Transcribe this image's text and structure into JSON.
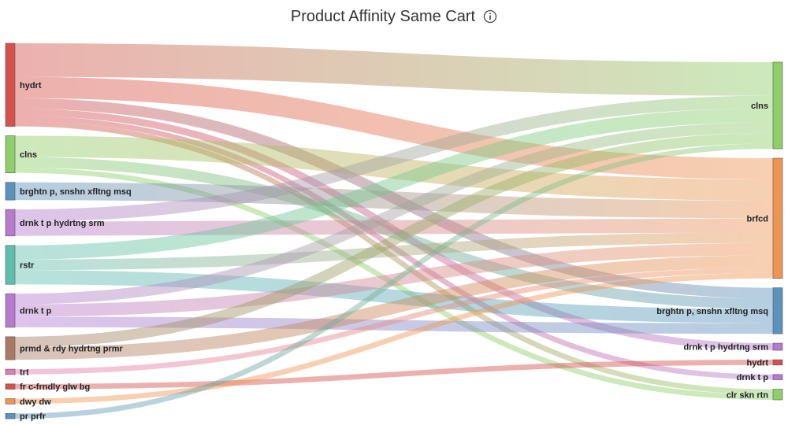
{
  "title": "Product Affinity Same Cart",
  "info_icon": "info-icon",
  "chart_data": {
    "type": "sankey",
    "title": "Product Affinity Same Cart",
    "sources": [
      {
        "id": "s_hydrt",
        "label": "hydrt",
        "color": "#d6504c"
      },
      {
        "id": "s_clns",
        "label": "clns",
        "color": "#8fcf6a"
      },
      {
        "id": "s_brghtn",
        "label": "brghtn p, snshn xfltng msq",
        "color": "#5b93bd"
      },
      {
        "id": "s_drnk_hydrtng",
        "label": "drnk t p hydrtng srm",
        "color": "#b67ad1"
      },
      {
        "id": "s_rstr",
        "label": "rstr",
        "color": "#5fbfae"
      },
      {
        "id": "s_drnk",
        "label": "drnk t p",
        "color": "#b67ad1"
      },
      {
        "id": "s_prmd",
        "label": "prmd & rdy hydrtng prmr",
        "color": "#a87a64"
      },
      {
        "id": "s_trt",
        "label": "trt",
        "color": "#e07bb3"
      },
      {
        "id": "s_fr",
        "label": "fr c-frndly glw bg",
        "color": "#d6504c"
      },
      {
        "id": "s_dwy",
        "label": "dwy dw",
        "color": "#ee9553"
      },
      {
        "id": "s_pr",
        "label": "pr prfr",
        "color": "#5b93bd"
      }
    ],
    "targets": [
      {
        "id": "t_clns",
        "label": "clns",
        "color": "#8fcf6a"
      },
      {
        "id": "t_brfcd",
        "label": "brfcd",
        "color": "#ee9553"
      },
      {
        "id": "t_brghtn",
        "label": "brghtn p, snshn xfltng msq",
        "color": "#5b93bd"
      },
      {
        "id": "t_drnk_hydrtng",
        "label": "drnk t p hydrtng srm",
        "color": "#b67ad1"
      },
      {
        "id": "t_hydrt",
        "label": "hydrt",
        "color": "#d6504c"
      },
      {
        "id": "t_drnk",
        "label": "drnk t p",
        "color": "#b67ad1"
      },
      {
        "id": "t_clr",
        "label": "clr skn rtn",
        "color": "#8fcf6a"
      }
    ],
    "links": [
      {
        "source": "s_hydrt",
        "target": "t_clns",
        "value": 19
      },
      {
        "source": "s_hydrt",
        "target": "t_brfcd",
        "value": 12
      },
      {
        "source": "s_hydrt",
        "target": "t_brghtn",
        "value": 6
      },
      {
        "source": "s_hydrt",
        "target": "t_drnk_hydrtng",
        "value": 4
      },
      {
        "source": "s_hydrt",
        "target": "t_drnk",
        "value": 3
      },
      {
        "source": "s_hydrt",
        "target": "t_clr",
        "value": 3
      },
      {
        "source": "s_clns",
        "target": "t_brfcd",
        "value": 12
      },
      {
        "source": "s_clns",
        "target": "t_brghtn",
        "value": 6
      },
      {
        "source": "s_clns",
        "target": "t_clr",
        "value": 3
      },
      {
        "source": "s_brghtn",
        "target": "t_brfcd",
        "value": 10
      },
      {
        "source": "s_drnk_hydrtng",
        "target": "t_clns",
        "value": 7
      },
      {
        "source": "s_drnk_hydrtng",
        "target": "t_brfcd",
        "value": 8
      },
      {
        "source": "s_rstr",
        "target": "t_clns",
        "value": 8
      },
      {
        "source": "s_rstr",
        "target": "t_brfcd",
        "value": 6
      },
      {
        "source": "s_rstr",
        "target": "t_brghtn",
        "value": 8
      },
      {
        "source": "s_drnk",
        "target": "t_clns",
        "value": 6
      },
      {
        "source": "s_drnk",
        "target": "t_brfcd",
        "value": 7
      },
      {
        "source": "s_drnk",
        "target": "t_brghtn",
        "value": 6
      },
      {
        "source": "s_prmd",
        "target": "t_clns",
        "value": 6
      },
      {
        "source": "s_prmd",
        "target": "t_brfcd",
        "value": 7
      },
      {
        "source": "s_trt",
        "target": "t_brfcd",
        "value": 3
      },
      {
        "source": "s_fr",
        "target": "t_hydrt",
        "value": 3
      },
      {
        "source": "s_dwy",
        "target": "t_brfcd",
        "value": 3
      },
      {
        "source": "s_pr",
        "target": "t_clns",
        "value": 3
      }
    ]
  }
}
